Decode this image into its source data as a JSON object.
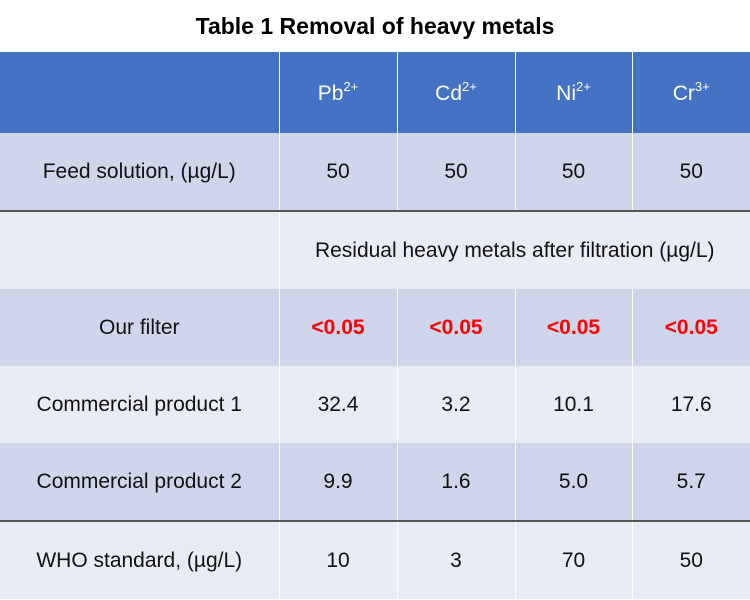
{
  "title": "Table 1 Removal of heavy metals",
  "columns": [
    {
      "ion": "Pb",
      "charge": "2+"
    },
    {
      "ion": "Cd",
      "charge": "2+"
    },
    {
      "ion": "Ni",
      "charge": "2+"
    },
    {
      "ion": "Cr",
      "charge": "3+"
    }
  ],
  "feed": {
    "label": "Feed solution, (µg/L)",
    "values": [
      "50",
      "50",
      "50",
      "50"
    ]
  },
  "residual_header": "Residual heavy metals after filtration (µg/L)",
  "rows": [
    {
      "label": "Our filter",
      "values": [
        "<0.05",
        "<0.05",
        "<0.05",
        "<0.05"
      ]
    },
    {
      "label": "Commercial product 1",
      "values": [
        "32.4",
        "3.2",
        "10.1",
        "17.6"
      ]
    },
    {
      "label": "Commercial product 2",
      "values": [
        "9.9",
        "1.6",
        "5.0",
        "5.7"
      ]
    },
    {
      "label": "WHO standard, (µg/L)",
      "values": [
        "10",
        "3",
        "70",
        "50"
      ]
    }
  ],
  "colors": {
    "header": "#4472C4",
    "row_dark": "#CFD5EA",
    "row_light": "#E9EBF5",
    "highlight": "#FF0000"
  }
}
